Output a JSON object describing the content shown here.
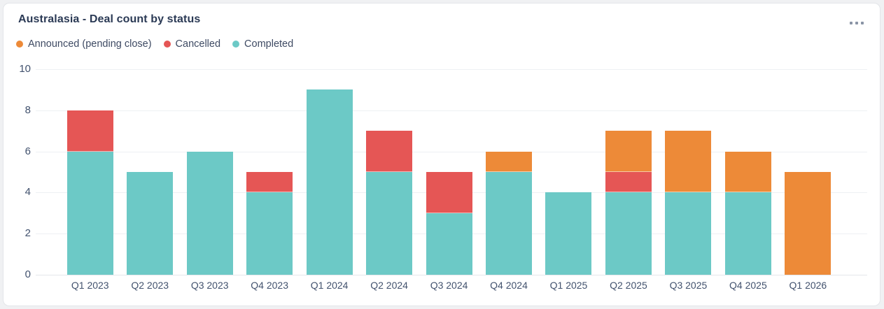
{
  "card": {
    "title": "Australasia - Deal count by status"
  },
  "chart_data": {
    "type": "bar",
    "stacked": true,
    "title": "Australasia - Deal count by status",
    "xlabel": "",
    "ylabel": "",
    "categories": [
      "Q1 2023",
      "Q2 2023",
      "Q3 2023",
      "Q4 2023",
      "Q1 2024",
      "Q2 2024",
      "Q3 2024",
      "Q4 2024",
      "Q1 2025",
      "Q2 2025",
      "Q3 2025",
      "Q4 2025",
      "Q1 2026"
    ],
    "series": [
      {
        "name": "Announced (pending close)",
        "color": "#ED8A38",
        "values": [
          0,
          0,
          0,
          0,
          0,
          0,
          0,
          1,
          0,
          2,
          3,
          2,
          5
        ]
      },
      {
        "name": "Cancelled",
        "color": "#E55655",
        "values": [
          2,
          0,
          0,
          1,
          0,
          2,
          2,
          0,
          0,
          1,
          0,
          0,
          0
        ]
      },
      {
        "name": "Completed",
        "color": "#6CC9C6",
        "values": [
          6,
          5,
          6,
          4,
          9,
          5,
          3,
          5,
          4,
          4,
          4,
          4,
          0
        ]
      }
    ],
    "totals": [
      8,
      5,
      6,
      5,
      9,
      7,
      5,
      6,
      4,
      7,
      7,
      6,
      5
    ],
    "stack_order_bottom_to_top": [
      "Completed",
      "Cancelled",
      "Announced (pending close)"
    ],
    "ylim": [
      0,
      10
    ],
    "yticks": [
      0,
      2,
      4,
      6,
      8,
      10
    ],
    "grid": true,
    "legend_position": "top-left"
  },
  "colors": {
    "announced": "#ED8A38",
    "cancelled": "#E55655",
    "completed": "#6CC9C6",
    "title_text": "#2B3A55",
    "axis_text": "#42526E",
    "legend_text": "#3E4A63",
    "gridline": "#EEF0F3",
    "card_border": "#E3E5E9",
    "page_background": "#F0F1F3",
    "more_icon": "#8A94A6"
  }
}
